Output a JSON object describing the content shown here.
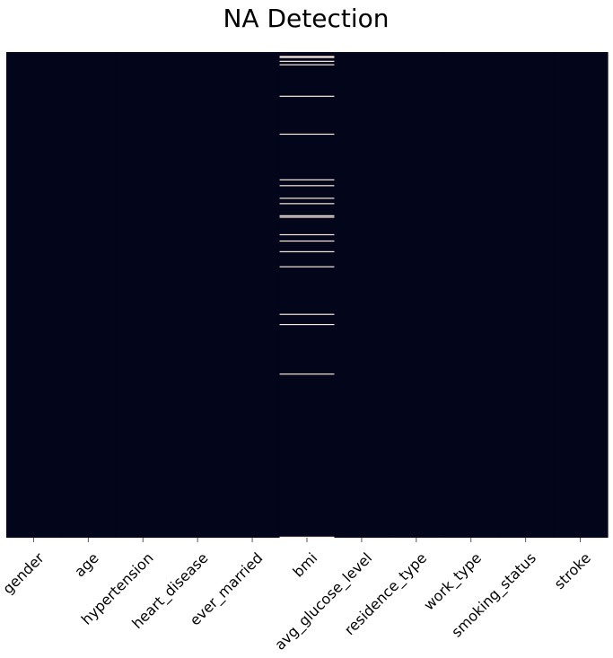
{
  "chart_data": {
    "type": "heatmap",
    "title": "NA Detection",
    "xlabel": "",
    "ylabel": "",
    "columns": [
      "gender",
      "age",
      "hypertension",
      "heart_disease",
      "ever_married",
      "bmi",
      "avg_glucose_level",
      "residence_type",
      "work_type",
      "smoking_status",
      "stroke"
    ],
    "missing_value_column": "bmi",
    "missing_row_positions": [
      0.008,
      0.01,
      0.018,
      0.025,
      0.09,
      0.168,
      0.262,
      0.274,
      0.3,
      0.311,
      0.336,
      0.339,
      0.375,
      0.388,
      0.41,
      0.441,
      0.539,
      0.56,
      0.662,
      0.998
    ],
    "colors": {
      "present": "#03051a",
      "missing": "#faebdd",
      "background": "#ffffff",
      "text": "#000000",
      "tick": "#555555"
    },
    "show_y_ticks": false,
    "colorbar": false
  }
}
